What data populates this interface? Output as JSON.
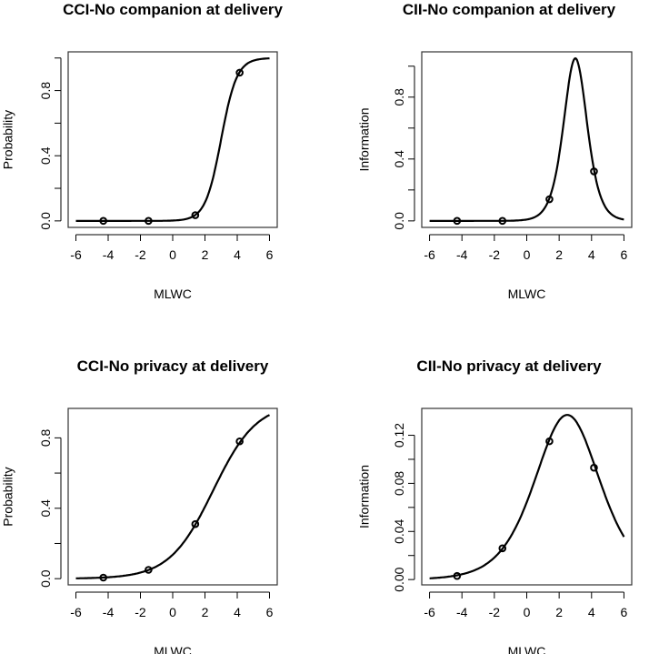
{
  "chart_data": [
    {
      "type": "line",
      "title": "CCI-No companion at delivery",
      "xlabel": "MLWC",
      "ylabel": "Probability",
      "xlim": [
        -6,
        6
      ],
      "xticks": [
        -6,
        -4,
        -2,
        0,
        2,
        4,
        6
      ],
      "yticks": [
        0,
        0.2,
        0.4,
        0.6,
        0.8,
        1.0
      ],
      "ytick_labels": {
        "0": "0.0",
        "0.4": "0.4",
        "0.8": "0.8"
      },
      "curve": {
        "kind": "probability",
        "a": 2.05,
        "b": 3.0
      },
      "points": {
        "x": [
          -4.3,
          -1.5,
          1.4,
          4.15
        ],
        "y": [
          0.0,
          0.0,
          0.035,
          0.91
        ]
      }
    },
    {
      "type": "line",
      "title": "CII-No companion at delivery",
      "xlabel": "MLWC",
      "ylabel": "Information",
      "xlim": [
        -6,
        6
      ],
      "xticks": [
        -6,
        -4,
        -2,
        0,
        2,
        4,
        6
      ],
      "yticks": [
        0,
        0.2,
        0.4,
        0.6,
        0.8,
        1.0
      ],
      "ytick_labels": {
        "0": "0.0",
        "0.4": "0.4",
        "0.8": "0.8"
      },
      "curve": {
        "kind": "information",
        "a": 2.05,
        "b": 3.0
      },
      "points": {
        "x": [
          -4.3,
          -1.5,
          1.4,
          4.15
        ],
        "y": [
          0.0,
          0.0,
          0.14,
          0.32
        ]
      }
    },
    {
      "type": "line",
      "title": "CCI-No privacy at delivery",
      "xlabel": "MLWC",
      "ylabel": "Probability",
      "xlim": [
        -6,
        6
      ],
      "xticks": [
        -6,
        -4,
        -2,
        0,
        2,
        4,
        6
      ],
      "yticks": [
        0,
        0.2,
        0.4,
        0.6,
        0.8
      ],
      "ytick_labels": {
        "0": "0.0",
        "0.4": "0.4",
        "0.8": "0.8"
      },
      "curve": {
        "kind": "probability",
        "a": 0.74,
        "b": 2.5
      },
      "points": {
        "x": [
          -4.3,
          -1.5,
          1.4,
          4.15
        ],
        "y": [
          0.006,
          0.05,
          0.31,
          0.78
        ]
      }
    },
    {
      "type": "line",
      "title": "CII-No privacy at delivery",
      "xlabel": "MLWC",
      "ylabel": "Information",
      "xlim": [
        -6,
        6
      ],
      "xticks": [
        -6,
        -4,
        -2,
        0,
        2,
        4,
        6
      ],
      "yticks": [
        0,
        0.02,
        0.04,
        0.06,
        0.08,
        0.1,
        0.12
      ],
      "ytick_labels": {
        "0": "0.00",
        "0.04": "0.04",
        "0.08": "0.08",
        "0.12": "0.12"
      },
      "curve": {
        "kind": "information",
        "a": 0.74,
        "b": 2.5
      },
      "points": {
        "x": [
          -4.3,
          -1.5,
          1.4,
          4.15
        ],
        "y": [
          0.003,
          0.026,
          0.115,
          0.093
        ]
      }
    }
  ]
}
